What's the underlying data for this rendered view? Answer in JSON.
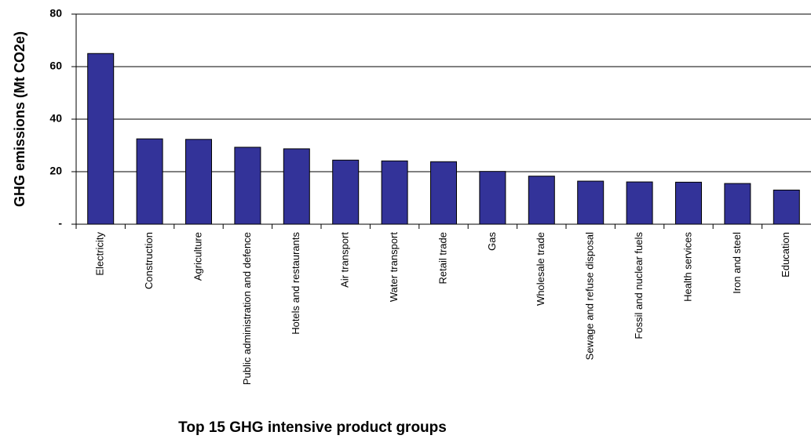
{
  "chart_data": {
    "type": "bar",
    "x_label": "Top 15 GHG intensive product groups",
    "y_label": "GHG emissions (Mt CO2e)",
    "categories": [
      "Electricity",
      "Construction",
      "Agriculture",
      "Public administration and defence",
      "Hotels and restaurants",
      "Air transport",
      "Water transport",
      "Retail trade",
      "Gas",
      "Wholesale trade",
      "Sewage and refuse disposal",
      "Fossil and nuclear fuels",
      "Health services",
      "Iron and steel",
      "Education"
    ],
    "values": [
      65,
      32.5,
      32.3,
      29.3,
      28.7,
      24.4,
      24.1,
      23.8,
      20.1,
      18.3,
      16.4,
      16.1,
      16.0,
      15.5,
      13
    ],
    "color": "#333399",
    "ylim": [
      0,
      80
    ],
    "yticks": [
      {
        "value": 0,
        "label": "-"
      },
      20,
      40,
      60,
      80
    ],
    "grid": true
  }
}
